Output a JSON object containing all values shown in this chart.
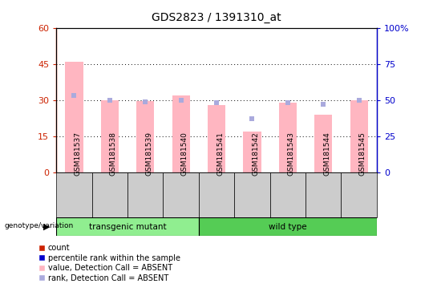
{
  "title": "GDS2823 / 1391310_at",
  "samples": [
    "GSM181537",
    "GSM181538",
    "GSM181539",
    "GSM181540",
    "GSM181541",
    "GSM181542",
    "GSM181543",
    "GSM181544",
    "GSM181545"
  ],
  "bar_values_absent": [
    46,
    30,
    29.5,
    32,
    28,
    17,
    29,
    24,
    30
  ],
  "rank_percent_absent": [
    53,
    50,
    49,
    50,
    48,
    37,
    48,
    47,
    50
  ],
  "ylim_left": [
    0,
    60
  ],
  "ylim_right": [
    0,
    100
  ],
  "yticks_left": [
    0,
    15,
    30,
    45,
    60
  ],
  "ytick_labels_left": [
    "0",
    "15",
    "30",
    "45",
    "60"
  ],
  "yticks_right": [
    0,
    25,
    50,
    75,
    100
  ],
  "ytick_labels_right": [
    "0",
    "25",
    "50",
    "75",
    "100%"
  ],
  "left_color": "#CC2200",
  "right_color": "#0000CC",
  "bar_color_absent": "#FFB6C1",
  "rank_color_absent": "#AAAADD",
  "groups": [
    {
      "label": "transgenic mutant",
      "start": 0,
      "end": 3,
      "color": "#90EE90"
    },
    {
      "label": "wild type",
      "start": 4,
      "end": 8,
      "color": "#55CC55"
    }
  ],
  "legend_items": [
    {
      "color": "#CC2200",
      "label": "count"
    },
    {
      "color": "#0000CC",
      "label": "percentile rank within the sample"
    },
    {
      "color": "#FFB6C1",
      "label": "value, Detection Call = ABSENT"
    },
    {
      "color": "#AAAADD",
      "label": "rank, Detection Call = ABSENT"
    }
  ]
}
